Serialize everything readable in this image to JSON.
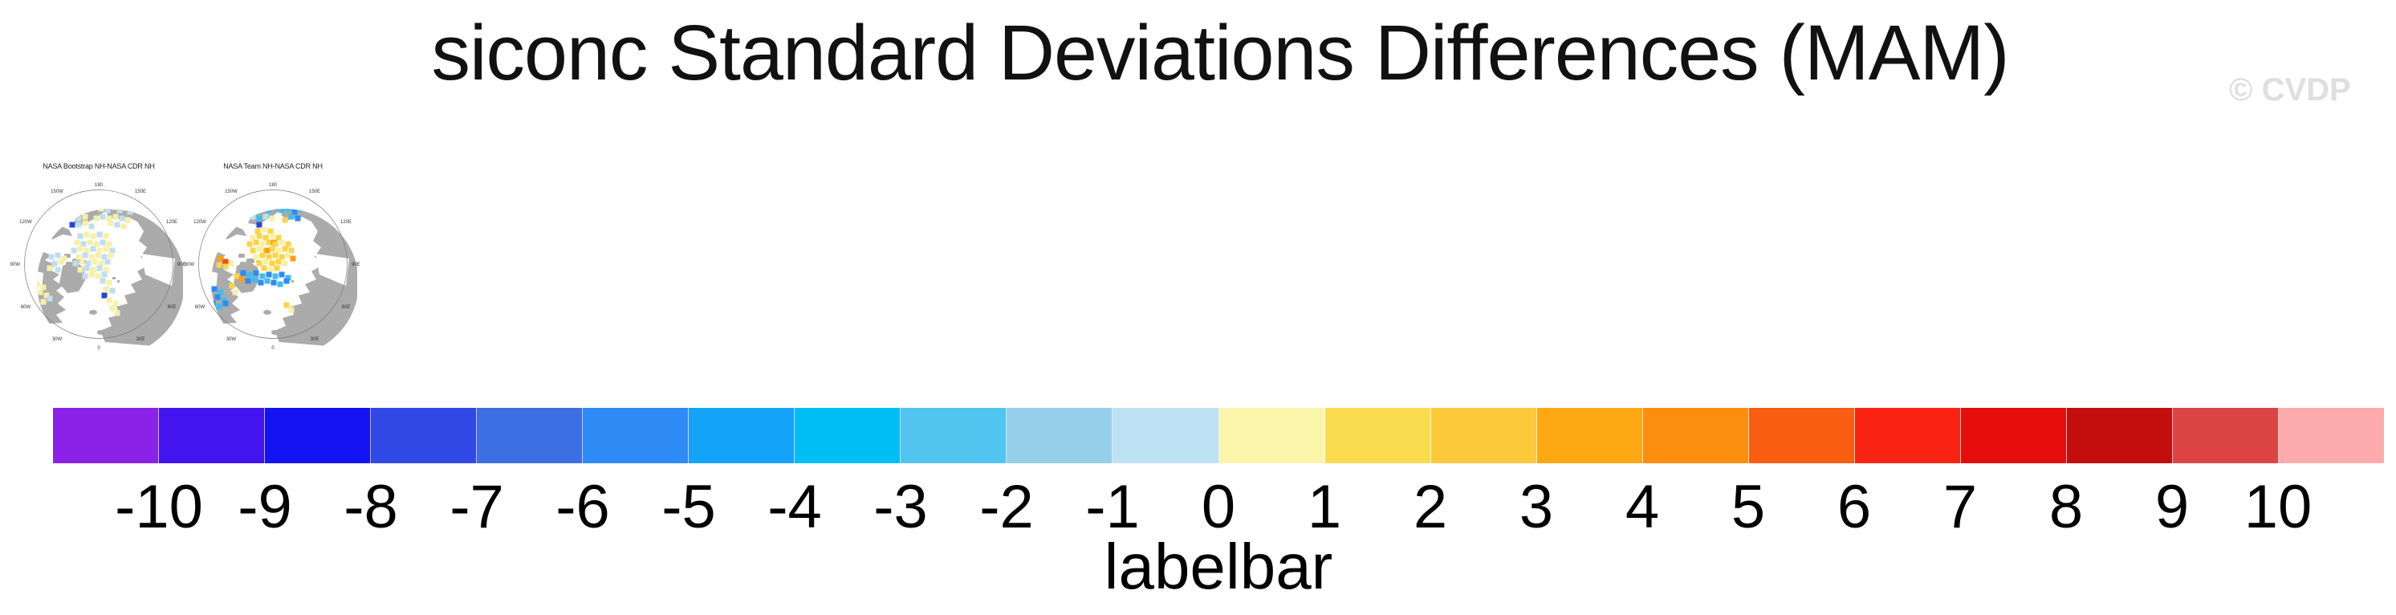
{
  "header": {
    "title": "siconc Standard Deviations Differences (MAM)",
    "watermark": "© CVDP"
  },
  "chart_data": {
    "type": "heatmap",
    "variable": "siconc",
    "season": "MAM",
    "title": "siconc Standard Deviations Differences (MAM)",
    "panels": [
      {
        "title": "NASA Bootstrap NH-NASA CDR NH",
        "projection": "north polar stereographic",
        "lon_labels": [
          "180",
          "150W",
          "150E",
          "120W",
          "120E",
          "90W",
          "90E",
          "60W",
          "60E",
          "30W",
          "30E",
          "0"
        ],
        "patches": [
          [
            58,
            26,
            "PY"
          ],
          [
            66,
            24,
            "LB"
          ],
          [
            74,
            27,
            "PY"
          ],
          [
            82,
            25,
            "PY"
          ],
          [
            90,
            23,
            "LB"
          ],
          [
            98,
            26,
            "PY"
          ],
          [
            106,
            28,
            "LB"
          ],
          [
            114,
            24,
            "PY"
          ],
          [
            121,
            28,
            "LB"
          ],
          [
            128,
            25,
            "PY"
          ],
          [
            134,
            30,
            "LB"
          ],
          [
            57,
            31,
            "RD"
          ],
          [
            62,
            36,
            "PY"
          ],
          [
            70,
            38,
            "LB"
          ],
          [
            78,
            36,
            "PY"
          ],
          [
            92,
            38,
            "PY"
          ],
          [
            100,
            36,
            "LB"
          ],
          [
            108,
            38,
            "PY"
          ],
          [
            116,
            36,
            "PY"
          ],
          [
            124,
            38,
            "LB"
          ],
          [
            131,
            40,
            "PY"
          ],
          [
            62,
            46,
            "DB"
          ],
          [
            70,
            46,
            "LB"
          ],
          [
            78,
            44,
            "PY"
          ],
          [
            86,
            48,
            "LB"
          ],
          [
            110,
            44,
            "PY"
          ],
          [
            118,
            46,
            "LB"
          ],
          [
            126,
            48,
            "PY"
          ],
          [
            72,
            60,
            "LB"
          ],
          [
            80,
            58,
            "PY"
          ],
          [
            88,
            60,
            "PY"
          ],
          [
            96,
            58,
            "LB"
          ],
          [
            104,
            60,
            "PY"
          ],
          [
            68,
            68,
            "PY"
          ],
          [
            76,
            70,
            "LB"
          ],
          [
            84,
            68,
            "PY"
          ],
          [
            92,
            70,
            "PY"
          ],
          [
            100,
            68,
            "LB"
          ],
          [
            108,
            70,
            "PY"
          ],
          [
            64,
            78,
            "LB"
          ],
          [
            72,
            76,
            "PY"
          ],
          [
            80,
            78,
            "PY"
          ],
          [
            88,
            76,
            "LB"
          ],
          [
            96,
            78,
            "PY"
          ],
          [
            104,
            76,
            "PY"
          ],
          [
            112,
            78,
            "LB"
          ],
          [
            70,
            86,
            "PY"
          ],
          [
            78,
            84,
            "LB"
          ],
          [
            86,
            86,
            "PY"
          ],
          [
            94,
            84,
            "PY"
          ],
          [
            102,
            86,
            "LB"
          ],
          [
            110,
            84,
            "PY"
          ],
          [
            66,
            94,
            "LB"
          ],
          [
            74,
            92,
            "PY"
          ],
          [
            82,
            94,
            "LB"
          ],
          [
            90,
            92,
            "PY"
          ],
          [
            98,
            94,
            "PY"
          ],
          [
            106,
            92,
            "LB"
          ],
          [
            72,
            102,
            "PY"
          ],
          [
            80,
            100,
            "LB"
          ],
          [
            88,
            102,
            "PY"
          ],
          [
            96,
            100,
            "LB"
          ],
          [
            104,
            102,
            "PY"
          ],
          [
            78,
            110,
            "LB"
          ],
          [
            86,
            108,
            "PY"
          ],
          [
            94,
            110,
            "PY"
          ],
          [
            102,
            108,
            "LB"
          ],
          [
            36,
            86,
            "LB"
          ],
          [
            44,
            84,
            "LB"
          ],
          [
            52,
            88,
            "PY"
          ],
          [
            40,
            94,
            "LB"
          ],
          [
            48,
            92,
            "PY"
          ],
          [
            34,
            100,
            "PY"
          ],
          [
            44,
            102,
            "LB"
          ],
          [
            18,
            120,
            "PY"
          ],
          [
            26,
            124,
            "PY"
          ],
          [
            22,
            130,
            "PY"
          ],
          [
            30,
            134,
            "PY"
          ],
          [
            16,
            138,
            "PY"
          ],
          [
            26,
            142,
            "PY"
          ],
          [
            34,
            138,
            "LB"
          ],
          [
            100,
            116,
            "LB"
          ],
          [
            108,
            118,
            "PY"
          ],
          [
            104,
            126,
            "PY"
          ],
          [
            112,
            128,
            "LB"
          ],
          [
            102,
            134,
            "DB"
          ],
          [
            108,
            140,
            "PY"
          ],
          [
            116,
            144,
            "PY"
          ],
          [
            112,
            150,
            "PY"
          ],
          [
            118,
            156,
            "PY"
          ]
        ]
      },
      {
        "title": "NASA Team NH-NASA CDR NH",
        "projection": "north polar stereographic",
        "lon_labels": [
          "180",
          "150W",
          "150E",
          "120W",
          "120E",
          "90W",
          "90E",
          "60W",
          "60E",
          "30W",
          "30E",
          "0"
        ],
        "patches": [
          [
            58,
            28,
            "CY"
          ],
          [
            66,
            26,
            "BL"
          ],
          [
            74,
            30,
            "CY"
          ],
          [
            82,
            26,
            "LB"
          ],
          [
            90,
            28,
            "CY"
          ],
          [
            98,
            24,
            "BL"
          ],
          [
            106,
            28,
            "CY"
          ],
          [
            114,
            26,
            "CY"
          ],
          [
            122,
            30,
            "BL"
          ],
          [
            130,
            26,
            "CY"
          ],
          [
            118,
            36,
            "CY"
          ],
          [
            126,
            38,
            "BL"
          ],
          [
            70,
            36,
            "LB"
          ],
          [
            78,
            38,
            "CY"
          ],
          [
            86,
            36,
            "LB"
          ],
          [
            94,
            38,
            "PY"
          ],
          [
            110,
            40,
            "GD"
          ],
          [
            78,
            46,
            "DB"
          ],
          [
            76,
            54,
            "GD"
          ],
          [
            84,
            52,
            "PY"
          ],
          [
            92,
            54,
            "GD"
          ],
          [
            70,
            62,
            "PY"
          ],
          [
            78,
            60,
            "GD"
          ],
          [
            86,
            62,
            "GD"
          ],
          [
            94,
            60,
            "PY"
          ],
          [
            102,
            62,
            "GD"
          ],
          [
            66,
            70,
            "GD"
          ],
          [
            74,
            68,
            "GD"
          ],
          [
            82,
            70,
            "PY"
          ],
          [
            90,
            68,
            "GD"
          ],
          [
            96,
            68,
            "OR"
          ],
          [
            98,
            70,
            "GD"
          ],
          [
            106,
            68,
            "PY"
          ],
          [
            114,
            70,
            "GD"
          ],
          [
            70,
            78,
            "GD"
          ],
          [
            78,
            76,
            "PY"
          ],
          [
            86,
            78,
            "GD"
          ],
          [
            88,
            78,
            "OR"
          ],
          [
            94,
            76,
            "GD"
          ],
          [
            102,
            78,
            "PY"
          ],
          [
            110,
            76,
            "GD"
          ],
          [
            118,
            78,
            "GD"
          ],
          [
            74,
            86,
            "PY"
          ],
          [
            82,
            84,
            "GD"
          ],
          [
            90,
            86,
            "GD"
          ],
          [
            98,
            84,
            "GD"
          ],
          [
            106,
            86,
            "GD"
          ],
          [
            114,
            84,
            "PY"
          ],
          [
            120,
            88,
            "OR"
          ],
          [
            78,
            94,
            "GD"
          ],
          [
            86,
            92,
            "PY"
          ],
          [
            94,
            94,
            "GD"
          ],
          [
            102,
            92,
            "GD"
          ],
          [
            110,
            94,
            "PY"
          ],
          [
            84,
            100,
            "GD"
          ],
          [
            92,
            102,
            "PY"
          ],
          [
            100,
            100,
            "GD"
          ],
          [
            30,
            88,
            "OR"
          ],
          [
            36,
            92,
            "RD"
          ],
          [
            28,
            96,
            "GD"
          ],
          [
            36,
            98,
            "GD"
          ],
          [
            43,
            94,
            "PY"
          ],
          [
            50,
            110,
            "GD"
          ],
          [
            56,
            114,
            "OR"
          ],
          [
            58,
            106,
            "BL"
          ],
          [
            66,
            108,
            "CY"
          ],
          [
            74,
            106,
            "BL"
          ],
          [
            82,
            110,
            "CY"
          ],
          [
            90,
            108,
            "BL"
          ],
          [
            98,
            110,
            "CY"
          ],
          [
            106,
            108,
            "BL"
          ],
          [
            114,
            112,
            "CY"
          ],
          [
            64,
            116,
            "BL"
          ],
          [
            72,
            114,
            "CY"
          ],
          [
            80,
            118,
            "BL"
          ],
          [
            88,
            116,
            "CY"
          ],
          [
            96,
            118,
            "BL"
          ],
          [
            104,
            120,
            "CY"
          ],
          [
            112,
            116,
            "BL"
          ],
          [
            44,
            122,
            "GD"
          ],
          [
            48,
            130,
            "PY"
          ],
          [
            22,
            126,
            "BL"
          ],
          [
            30,
            130,
            "CY"
          ],
          [
            26,
            136,
            "BL"
          ],
          [
            34,
            140,
            "CY"
          ],
          [
            20,
            144,
            "BL"
          ],
          [
            28,
            148,
            "CY"
          ],
          [
            36,
            144,
            "BL"
          ],
          [
            112,
            146,
            "GD"
          ],
          [
            118,
            152,
            "PY"
          ]
        ]
      }
    ],
    "palette": {
      "PY": "#F6F0A8",
      "GD": "#FBD44A",
      "OR": "#FCA011",
      "RD": "#F04A12",
      "LB": "#BFDEF2",
      "CY": "#3FBCEF",
      "BL": "#2E8AF5",
      "DB": "#2843D8"
    },
    "map_land_color": "#ABABAB",
    "colorbar": {
      "label": "labelbar",
      "levels": [
        -10,
        -9,
        -8,
        -7,
        -6,
        -5,
        -4,
        -3,
        -2,
        -1,
        0,
        1,
        2,
        3,
        4,
        5,
        6,
        7,
        8,
        9,
        10
      ],
      "colors": [
        "#8B22E8",
        "#4313F0",
        "#1414F2",
        "#3049E6",
        "#3C6FE1",
        "#2E8BF5",
        "#14A3F8",
        "#00BFF4",
        "#52C4F0",
        "#96CFEA",
        "#BEE2F4",
        "#FBF5AA",
        "#FBDC4E",
        "#FCC93A",
        "#FDA813",
        "#FB8E0E",
        "#F95D12",
        "#FA2313",
        "#E60D0D",
        "#C40D0D",
        "#DD4545",
        "#FCAAAB"
      ]
    }
  }
}
